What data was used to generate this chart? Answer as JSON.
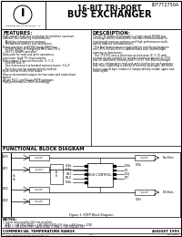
{
  "title_line1": "16-BIT TRI-PORT",
  "title_line2": "BUS EXCHANGER",
  "part_number": "IDT7T2750A",
  "company": "Integrated Device Technology, Inc.",
  "features_title": "FEATURES:",
  "description_title": "DESCRIPTION:",
  "features_lines": [
    "High-speed 16-bit bus exchange for interface communi-",
    "cation in the following environments:",
    " - Multi-key interconnect memory",
    " - Multiplexed address and data buses",
    "Direct interface to 80386 family PROCbus",
    " - 80386 family of Integrated PROCbus CPUs",
    " - 82077 (DRAM controller)",
    "Data path for read and write operations",
    "Low noise: 5mA TTL level outputs",
    "Bidirectional 3-bus architecture: X, Y, Z",
    " - One IDR bus: X",
    " - Two interconnect or banked-memory buses: Y & Z",
    " - Each bus can be independently latched",
    "Byte control on all three buses",
    "Source terminated outputs for low noise and undershoot",
    "control",
    "48-pin PLCC and 56-pin PQFP packages",
    "High-performance CMOS technology"
  ],
  "description_lines": [
    "The IDT Hi-TrisBus Exchanger is a high speed 80386 bus",
    "exchange device intended for interface communication in",
    "interleaved memory systems and high performance multi-",
    "ported address and data buses.",
    "  The Bus Exchanger is responsible for interfacing between",
    "the CPU's XD bus (CPU's address/data bus) and multiple",
    "memory or data buses.",
    "  The 7T2750 uses a three bus architecture (X, Y, Z) with",
    "control signals suitable for simple transfer between the CPU",
    "bus (X) and either memory bus (Y or Z). The Bus Exchanger",
    "features independent read and write latches for each memory",
    "bus, thus supporting a variety of memory strategies. All three",
    "buses support byte strobes to independently enable upper and",
    "lower bytes."
  ],
  "block_title": "FUNCTIONAL BLOCK DIAGRAM",
  "figure_caption": "Figure 1. PQFP Block Diagram",
  "notes_title": "NOTES:",
  "notes_lines": [
    "1. Inputs terminated by 50Ω (not installed)",
    "   OEBx = +VB 390Ω (820Ω = +VB 390Ω (820Ω=1k5 ohm = 6k8 ohms = 220Ω",
    "   OEBy = +VB 6k47k PEB® OA2Ω (820Ω) = OEBz = +VB 390Ω 4k7 SFC"
  ],
  "footer_left": "COMMERCIAL TEMPERATURE RANGE",
  "footer_right": "AUGUST 1993",
  "footer_mid": "II 5",
  "footer_code": "DS0-44301",
  "copyright": "© 1993 Integrated Device Technology, Inc.",
  "bg_color": "#ffffff",
  "line_color": "#000000",
  "text_color": "#000000"
}
